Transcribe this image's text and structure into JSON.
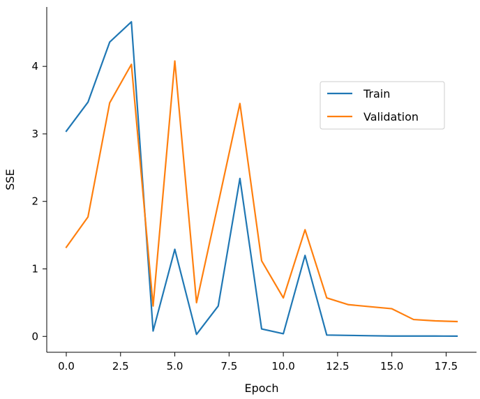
{
  "chart_data": {
    "type": "line",
    "title": "",
    "xlabel": "Epoch",
    "ylabel": "SSE",
    "xlim": [
      -0.9,
      18.9
    ],
    "ylim": [
      -0.235,
      4.88
    ],
    "xticks": [
      0,
      2.5,
      5,
      7.5,
      10,
      12.5,
      15,
      17.5
    ],
    "xtick_labels": [
      "0.0",
      "2.5",
      "5.0",
      "7.5",
      "10.0",
      "12.5",
      "15.0",
      "17.5"
    ],
    "yticks": [
      0,
      1,
      2,
      3,
      4
    ],
    "ytick_labels": [
      "0",
      "1",
      "2",
      "3",
      "4"
    ],
    "grid": false,
    "legend_position": "center-right",
    "x": [
      0,
      1,
      2,
      3,
      4,
      5,
      6,
      7,
      8,
      9,
      10,
      11,
      12,
      13,
      14,
      15,
      16,
      17,
      18
    ],
    "series": [
      {
        "name": "Train",
        "color": "#1f77b4",
        "values": [
          3.04,
          3.47,
          4.36,
          4.66,
          0.08,
          1.29,
          0.03,
          0.45,
          2.34,
          0.11,
          0.04,
          1.2,
          0.02,
          0.015,
          0.01,
          0.005,
          0.005,
          0.005,
          0.004
        ]
      },
      {
        "name": "Validation",
        "color": "#ff7f0e",
        "values": [
          1.32,
          1.77,
          3.46,
          4.03,
          0.45,
          4.08,
          0.5,
          1.97,
          3.45,
          1.12,
          0.57,
          1.58,
          0.57,
          0.47,
          0.44,
          0.41,
          0.25,
          0.23,
          0.22
        ]
      }
    ]
  }
}
